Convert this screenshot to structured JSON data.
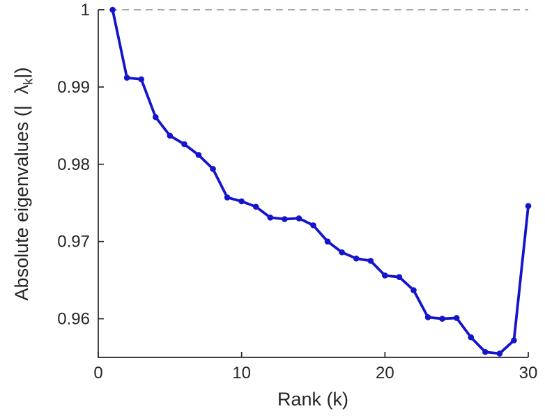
{
  "figure": {
    "background": "#ffffff"
  },
  "chart_data": {
    "type": "line",
    "title": "",
    "xlabel": "Rank (k)",
    "ylabel": "Absolute eigenvalues (| λk |)",
    "ylabel_parts": {
      "prefix": "Absolute eigenvalues (|",
      "symbol": "λ",
      "subscript": "k",
      "suffix": "|)"
    },
    "x": [
      1,
      2,
      3,
      4,
      5,
      6,
      7,
      8,
      9,
      10,
      11,
      12,
      13,
      14,
      15,
      16,
      17,
      18,
      19,
      20,
      21,
      22,
      23,
      24,
      25,
      26,
      27,
      28,
      29,
      30
    ],
    "y": [
      1.0,
      0.9912,
      0.991,
      0.9861,
      0.9837,
      0.9826,
      0.9812,
      0.9794,
      0.9757,
      0.9752,
      0.9745,
      0.9731,
      0.9729,
      0.973,
      0.9721,
      0.97,
      0.9686,
      0.9678,
      0.9675,
      0.9656,
      0.9654,
      0.9637,
      0.9602,
      0.96,
      0.9601,
      0.9576,
      0.9557,
      0.9555,
      0.9572,
      0.9746
    ],
    "xlim": [
      0,
      30
    ],
    "ylim": [
      0.955,
      1.0
    ],
    "xticks": [
      0,
      10,
      20,
      30
    ],
    "xtick_labels": [
      "0",
      "10",
      "20",
      "30"
    ],
    "yticks": [
      1,
      0.99,
      0.98,
      0.97,
      0.96
    ],
    "ytick_labels": [
      "1",
      "0.99",
      "0.98",
      "0.97",
      "0.96"
    ],
    "reference_line_y": 1.0,
    "grid": false,
    "legend": false,
    "line_color": "#1414cc",
    "marker": "circle",
    "reference_line_color": "#a8a8a8",
    "axis_color": "#262626"
  }
}
